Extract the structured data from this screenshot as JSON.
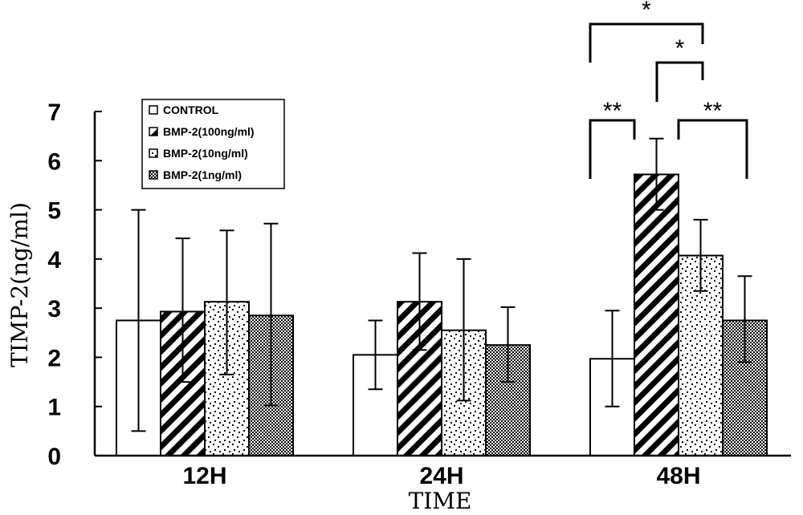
{
  "chart_data": {
    "type": "bar",
    "categories": [
      "12H",
      "24H",
      "48H"
    ],
    "series": [
      {
        "name": "CONTROL",
        "pattern": "white",
        "values": [
          2.75,
          2.05,
          1.97
        ],
        "err_low": [
          0.5,
          1.35,
          1.0
        ],
        "err_high": [
          5.0,
          2.75,
          2.95
        ]
      },
      {
        "name": "BMP-2(100ng/ml)",
        "pattern": "diagonal-stripes",
        "values": [
          2.93,
          3.13,
          5.72
        ],
        "err_low": [
          1.5,
          2.15,
          5.0
        ],
        "err_high": [
          4.42,
          4.12,
          6.45
        ]
      },
      {
        "name": "BMP-2(10ng/ml)",
        "pattern": "sparse-dots",
        "values": [
          3.13,
          2.55,
          4.07
        ],
        "err_low": [
          1.65,
          1.12,
          3.35
        ],
        "err_high": [
          4.58,
          4.0,
          4.8
        ]
      },
      {
        "name": "BMP-2(1ng/ml)",
        "pattern": "dense-checker",
        "values": [
          2.85,
          2.25,
          2.75
        ],
        "err_low": [
          1.02,
          1.5,
          1.9
        ],
        "err_high": [
          4.72,
          3.02,
          3.65
        ]
      }
    ],
    "ylabel": "TIMP-2(ng/ml)",
    "xlabel": "TIME",
    "ylim": [
      0,
      7
    ],
    "yticks": [
      "0",
      "1",
      "2",
      "3",
      "4",
      "5",
      "6",
      "7"
    ],
    "legend_position": "top-left",
    "grid": false,
    "significance": [
      {
        "category": "48H",
        "from": "CONTROL",
        "to": "BMP-2(100ng/ml)",
        "label": "**"
      },
      {
        "category": "48H",
        "from": "BMP-2(100ng/ml)",
        "to": "BMP-2(1ng/ml)",
        "label": "**"
      },
      {
        "category": "48H",
        "from": "BMP-2(100ng/ml)",
        "to": "BMP-2(10ng/ml)",
        "label": "*"
      },
      {
        "category": "48H",
        "from": "CONTROL",
        "to": "BMP-2(10ng/ml)",
        "label": "*"
      }
    ]
  }
}
